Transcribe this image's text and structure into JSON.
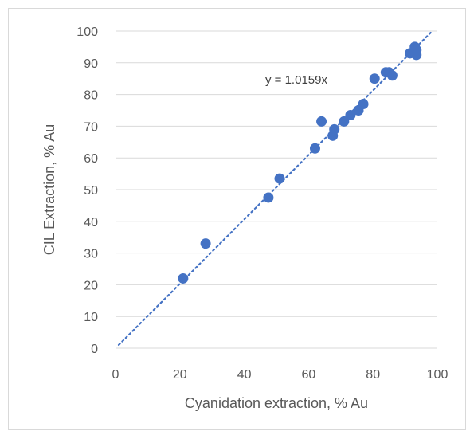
{
  "chart_data": {
    "type": "scatter",
    "title": "",
    "xlabel": "Cyanidation extraction, % Au",
    "ylabel": "CIL Extraction, % Au",
    "xlim": [
      0,
      100
    ],
    "ylim": [
      0,
      100
    ],
    "x_ticks": [
      0,
      20,
      40,
      60,
      80,
      100
    ],
    "y_ticks": [
      0,
      10,
      20,
      30,
      40,
      50,
      60,
      70,
      80,
      90,
      100
    ],
    "x_tick_labels": [
      "0",
      "20",
      "40",
      "60",
      "80",
      "100"
    ],
    "y_tick_labels": [
      "0",
      "10",
      "20",
      "30",
      "40",
      "50",
      "60",
      "70",
      "80",
      "90",
      "100"
    ],
    "grid": "horizontal",
    "legend": "none",
    "colors": {
      "marker": "#4472C4",
      "trendline": "#4472C4",
      "grid": "#d9d9d9",
      "axis_text": "#595959"
    },
    "series": [
      {
        "x": [
          21,
          28,
          47.5,
          51,
          62,
          64,
          67.5,
          68,
          71,
          73,
          75.5,
          77,
          80.5,
          84,
          85,
          86,
          91.5,
          93,
          93.5,
          93.5
        ],
        "y": [
          22,
          33,
          47.5,
          53.5,
          63,
          71.5,
          67,
          69,
          71.5,
          73.5,
          75,
          77,
          85,
          87,
          87,
          86,
          93,
          95,
          92.5,
          94
        ]
      }
    ],
    "trendline": {
      "type": "linear-through-origin",
      "slope": 1.0159,
      "x_range": [
        0,
        100
      ],
      "equation_label": "y = 1.0159x"
    }
  }
}
